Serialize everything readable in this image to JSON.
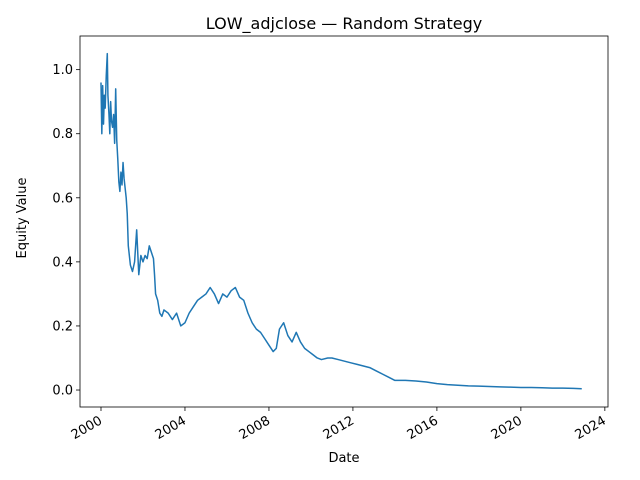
{
  "chart_data": {
    "type": "line",
    "title": "LOW_adjclose — Random Strategy",
    "xlabel": "Date",
    "ylabel": "Equity Value",
    "xlim": [
      1999.0,
      2024.15
    ],
    "ylim": [
      -0.053,
      1.105
    ],
    "x_ticks": [
      2000,
      2004,
      2008,
      2012,
      2016,
      2020,
      2024
    ],
    "x_tick_labels": [
      "2000",
      "2004",
      "2008",
      "2012",
      "2016",
      "2020",
      "2024"
    ],
    "y_ticks": [
      0.0,
      0.2,
      0.4,
      0.6,
      0.8,
      1.0
    ],
    "y_tick_labels": [
      "0.0",
      "0.2",
      "0.4",
      "0.6",
      "0.8",
      "1.0"
    ],
    "grid": false,
    "series": [
      {
        "color": "#1f77b4",
        "x": [
          2000.0,
          2000.04,
          2000.08,
          2000.12,
          2000.16,
          2000.2,
          2000.25,
          2000.3,
          2000.33,
          2000.38,
          2000.42,
          2000.46,
          2000.5,
          2000.55,
          2000.6,
          2000.65,
          2000.7,
          2000.75,
          2000.8,
          2000.85,
          2000.9,
          2000.95,
          2001.0,
          2001.05,
          2001.1,
          2001.15,
          2001.2,
          2001.25,
          2001.3,
          2001.4,
          2001.5,
          2001.6,
          2001.7,
          2001.8,
          2001.9,
          2002.0,
          2002.1,
          2002.2,
          2002.3,
          2002.4,
          2002.5,
          2002.55,
          2002.6,
          2002.7,
          2002.8,
          2002.9,
          2003.0,
          2003.2,
          2003.4,
          2003.6,
          2003.8,
          2004.0,
          2004.2,
          2004.4,
          2004.6,
          2004.8,
          2005.0,
          2005.2,
          2005.4,
          2005.6,
          2005.8,
          2006.0,
          2006.2,
          2006.4,
          2006.6,
          2006.8,
          2007.0,
          2007.2,
          2007.4,
          2007.6,
          2007.8,
          2008.0,
          2008.2,
          2008.35,
          2008.5,
          2008.7,
          2008.9,
          2009.1,
          2009.3,
          2009.5,
          2009.7,
          2009.9,
          2010.1,
          2010.3,
          2010.5,
          2010.8,
          2011.0,
          2011.3,
          2011.6,
          2011.9,
          2012.2,
          2012.5,
          2012.8,
          2013.1,
          2013.4,
          2013.7,
          2014.0,
          2014.5,
          2015.0,
          2015.5,
          2016.0,
          2016.5,
          2017.0,
          2017.5,
          2018.0,
          2018.5,
          2019.0,
          2019.5,
          2020.0,
          2020.5,
          2021.0,
          2021.5,
          2022.0,
          2022.5,
          2022.9
        ],
        "y": [
          0.96,
          0.8,
          0.95,
          0.83,
          0.92,
          0.88,
          0.98,
          1.05,
          0.92,
          0.86,
          0.8,
          0.9,
          0.84,
          0.82,
          0.86,
          0.77,
          0.94,
          0.78,
          0.72,
          0.65,
          0.62,
          0.68,
          0.64,
          0.71,
          0.66,
          0.63,
          0.6,
          0.55,
          0.45,
          0.39,
          0.37,
          0.4,
          0.5,
          0.36,
          0.42,
          0.4,
          0.42,
          0.41,
          0.45,
          0.43,
          0.41,
          0.36,
          0.3,
          0.28,
          0.24,
          0.23,
          0.25,
          0.24,
          0.22,
          0.24,
          0.2,
          0.21,
          0.24,
          0.26,
          0.28,
          0.29,
          0.3,
          0.32,
          0.3,
          0.27,
          0.3,
          0.29,
          0.31,
          0.32,
          0.29,
          0.28,
          0.24,
          0.21,
          0.19,
          0.18,
          0.16,
          0.14,
          0.12,
          0.13,
          0.19,
          0.21,
          0.17,
          0.15,
          0.18,
          0.15,
          0.13,
          0.12,
          0.11,
          0.1,
          0.095,
          0.1,
          0.1,
          0.095,
          0.09,
          0.085,
          0.08,
          0.075,
          0.07,
          0.06,
          0.05,
          0.04,
          0.03,
          0.03,
          0.028,
          0.025,
          0.02,
          0.017,
          0.015,
          0.013,
          0.012,
          0.011,
          0.01,
          0.009,
          0.008,
          0.008,
          0.007,
          0.006,
          0.006,
          0.005,
          0.004
        ]
      }
    ]
  }
}
